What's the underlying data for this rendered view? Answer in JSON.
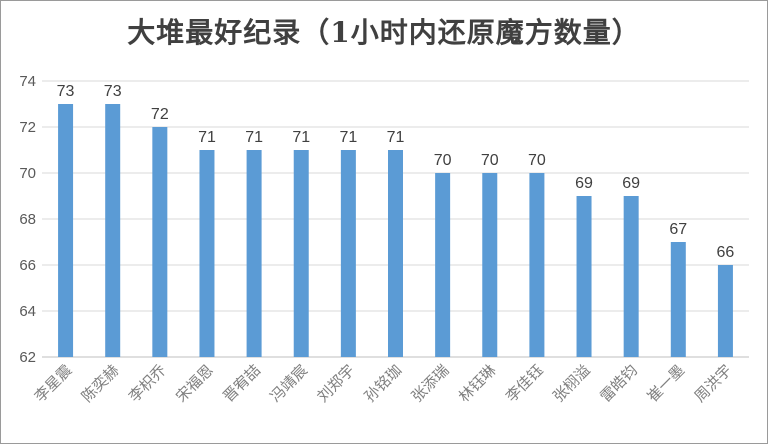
{
  "chart_data": {
    "type": "bar",
    "title": "大堆最好纪录（1小时内还原魔方数量）",
    "xlabel": "",
    "ylabel": "",
    "ylim": [
      62,
      74
    ],
    "yticks": [
      62,
      64,
      66,
      68,
      70,
      72,
      74
    ],
    "grid": true,
    "bar_color": "#5b9bd5",
    "categories": [
      "李星震",
      "陈奕赫",
      "李枳乔",
      "宋福恩",
      "晋宥喆",
      "冯靖宸",
      "刘郑宇",
      "孙铭珈",
      "张添瑞",
      "林钰琳",
      "李佳钰",
      "张栩溢",
      "雷皓钧",
      "崔一墨",
      "周洪宇"
    ],
    "values": [
      73,
      73,
      72,
      71,
      71,
      71,
      71,
      71,
      70,
      70,
      70,
      69,
      69,
      67,
      66
    ]
  }
}
